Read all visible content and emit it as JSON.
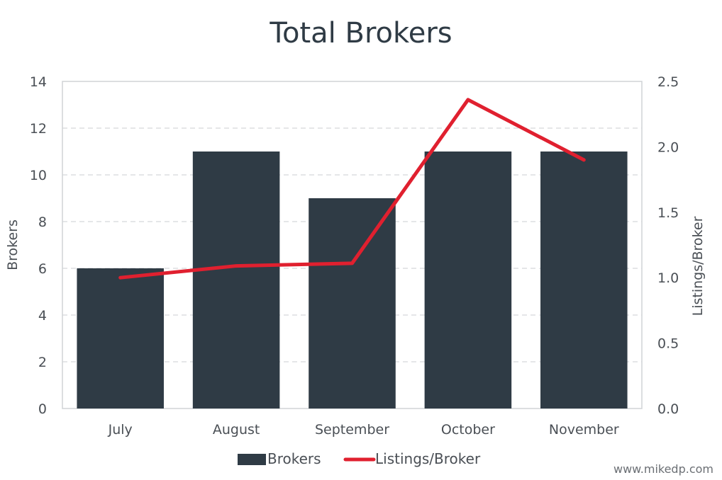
{
  "chart_data": {
    "type": "bar",
    "title": "Total Brokers",
    "categories": [
      "July",
      "August",
      "September",
      "October",
      "November"
    ],
    "series": [
      {
        "name": "Brokers",
        "type": "bar",
        "axis": "left",
        "color": "#2f3b45",
        "values": [
          6,
          11,
          9,
          11,
          11
        ]
      },
      {
        "name": "Listings/Broker",
        "type": "line",
        "axis": "right",
        "color": "#e0202f",
        "values": [
          1.0,
          1.09,
          1.11,
          2.36,
          1.9
        ]
      }
    ],
    "ylabel": "Brokers",
    "y2label": "Listings/Broker",
    "ylim": [
      0,
      14
    ],
    "y2lim": [
      0,
      2.5
    ],
    "yticks": [
      "0",
      "2",
      "4",
      "6",
      "8",
      "10",
      "12",
      "14"
    ],
    "y2ticks": [
      "0.0",
      "0.5",
      "1.0",
      "1.5",
      "2.0",
      "2.5"
    ],
    "grid": true,
    "legend_position": "bottom"
  },
  "credit": "www.mikedp.com"
}
